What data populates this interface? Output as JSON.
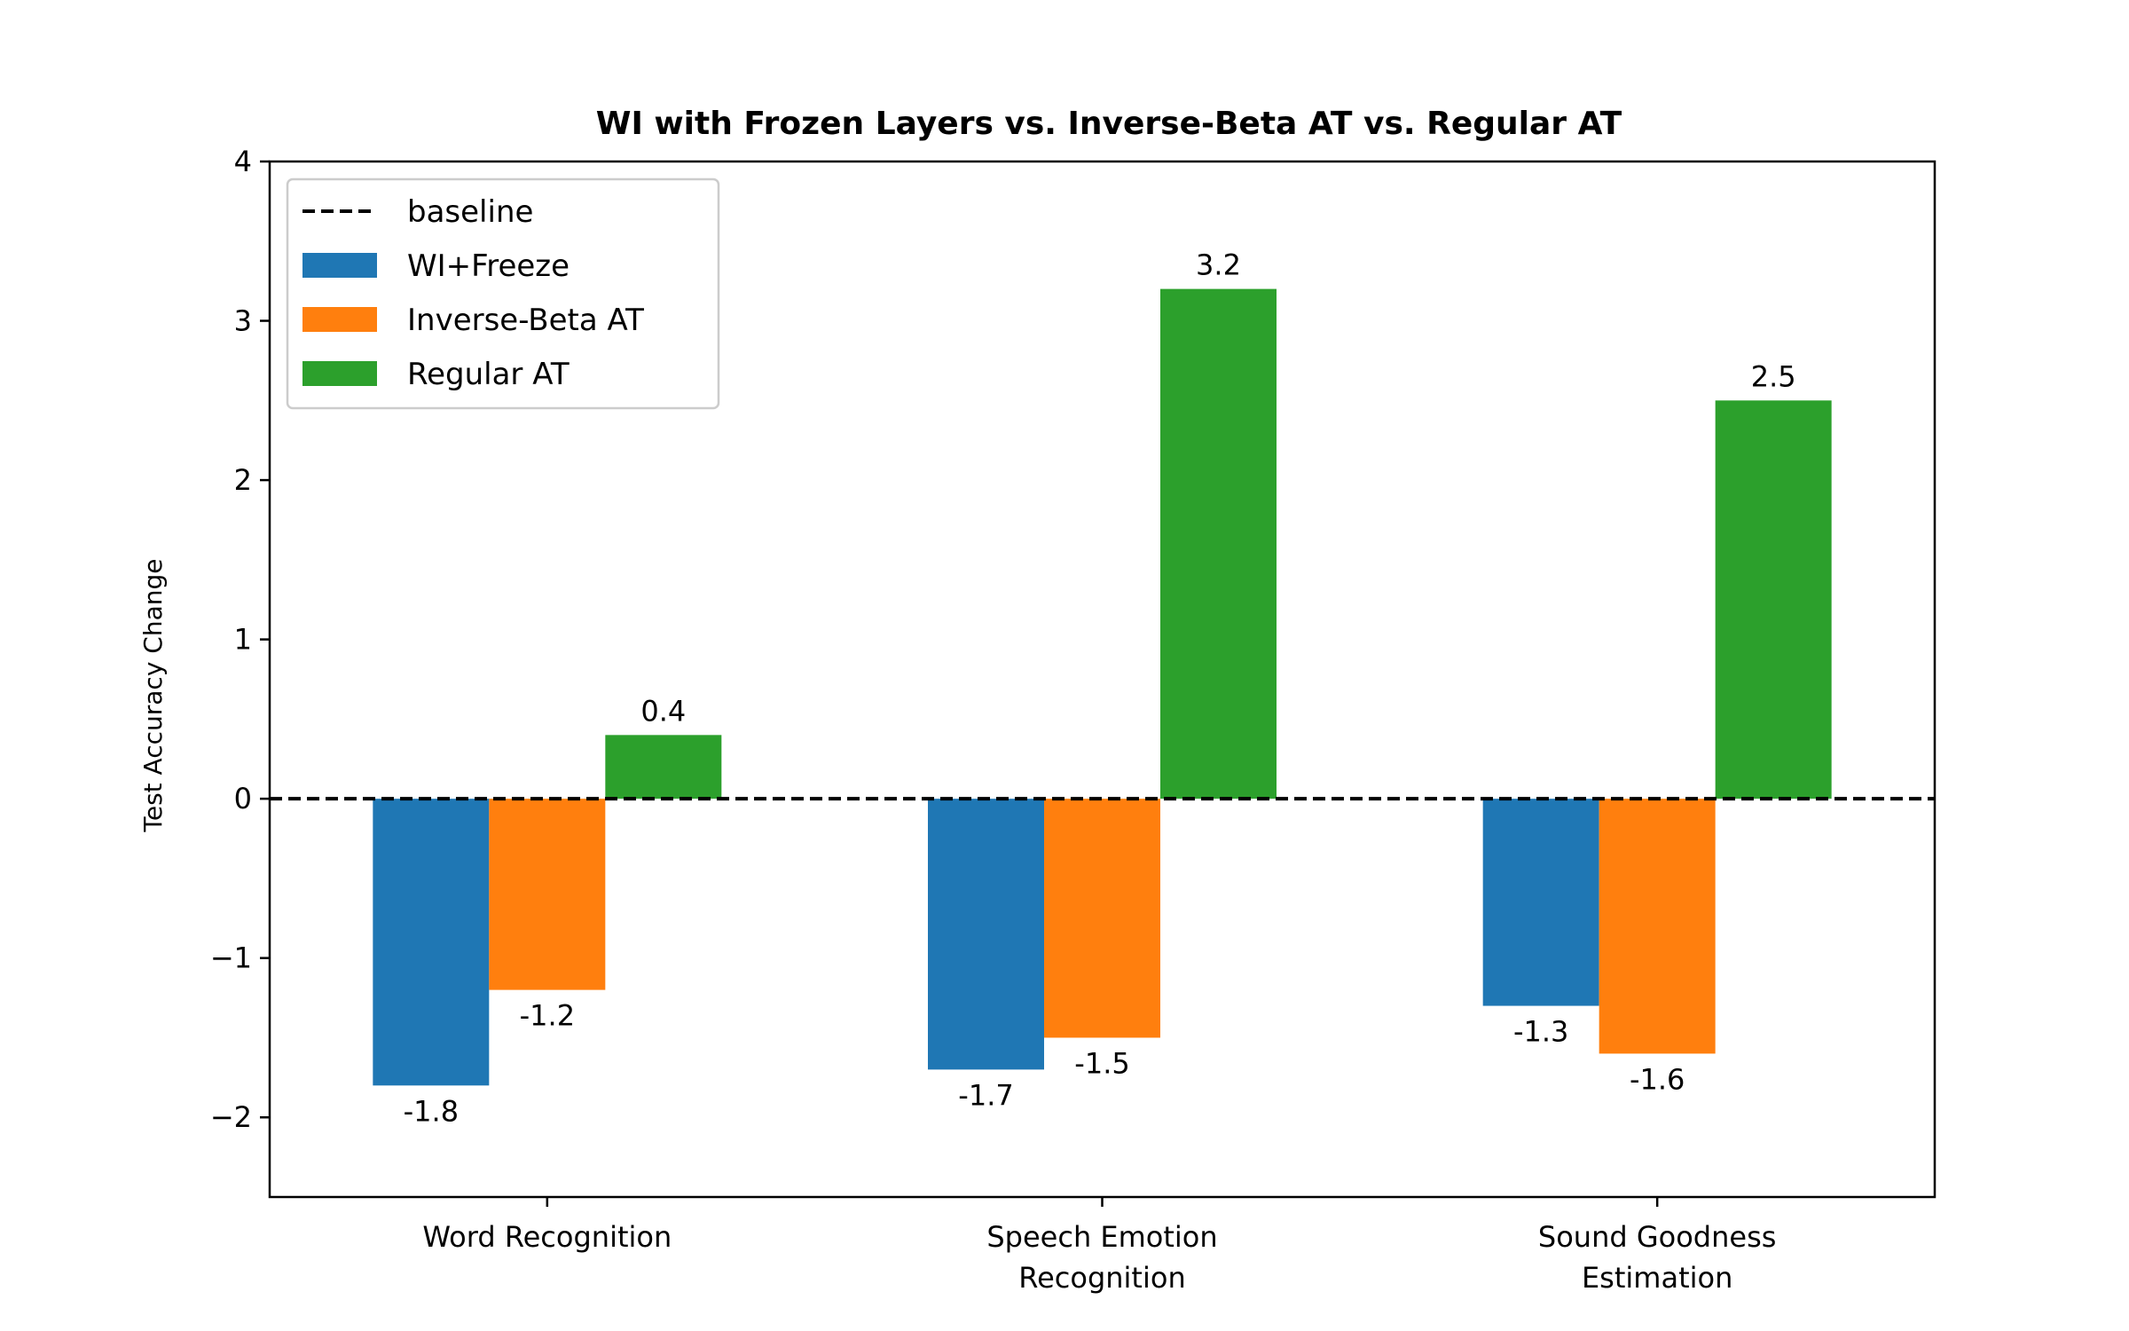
{
  "chart_data": {
    "type": "bar",
    "title": "WI with Frozen Layers vs. Inverse-Beta AT vs. Regular AT",
    "xlabel": "",
    "ylabel": "Test Accuracy Change",
    "ylim": [
      -2.5,
      4
    ],
    "yticks": [
      {
        "value": -2,
        "label": "−2"
      },
      {
        "value": -1,
        "label": "−1"
      },
      {
        "value": 0,
        "label": "0"
      },
      {
        "value": 1,
        "label": "1"
      },
      {
        "value": 2,
        "label": "2"
      },
      {
        "value": 3,
        "label": "3"
      },
      {
        "value": 4,
        "label": "4"
      }
    ],
    "categories": [
      [
        "Word Recognition"
      ],
      [
        "Speech Emotion",
        "Recognition"
      ],
      [
        "Sound Goodness",
        "Estimation"
      ]
    ],
    "series": [
      {
        "name": "WI+Freeze",
        "color": "#1f77b4",
        "values": [
          -1.8,
          -1.7,
          -1.3
        ],
        "labels": [
          "-1.8",
          "-1.7",
          "-1.3"
        ]
      },
      {
        "name": "Inverse-Beta AT",
        "color": "#ff7f0e",
        "values": [
          -1.2,
          -1.5,
          -1.6
        ],
        "labels": [
          "-1.2",
          "-1.5",
          "-1.6"
        ]
      },
      {
        "name": "Regular AT",
        "color": "#2ca02c",
        "values": [
          0.4,
          3.2,
          2.5
        ],
        "labels": [
          "0.4",
          "3.2",
          "2.5"
        ]
      }
    ],
    "baseline": {
      "name": "baseline",
      "value": 0,
      "style": "dashed",
      "color": "#000000"
    },
    "legend": {
      "placement": "top-left"
    },
    "grid": false
  }
}
